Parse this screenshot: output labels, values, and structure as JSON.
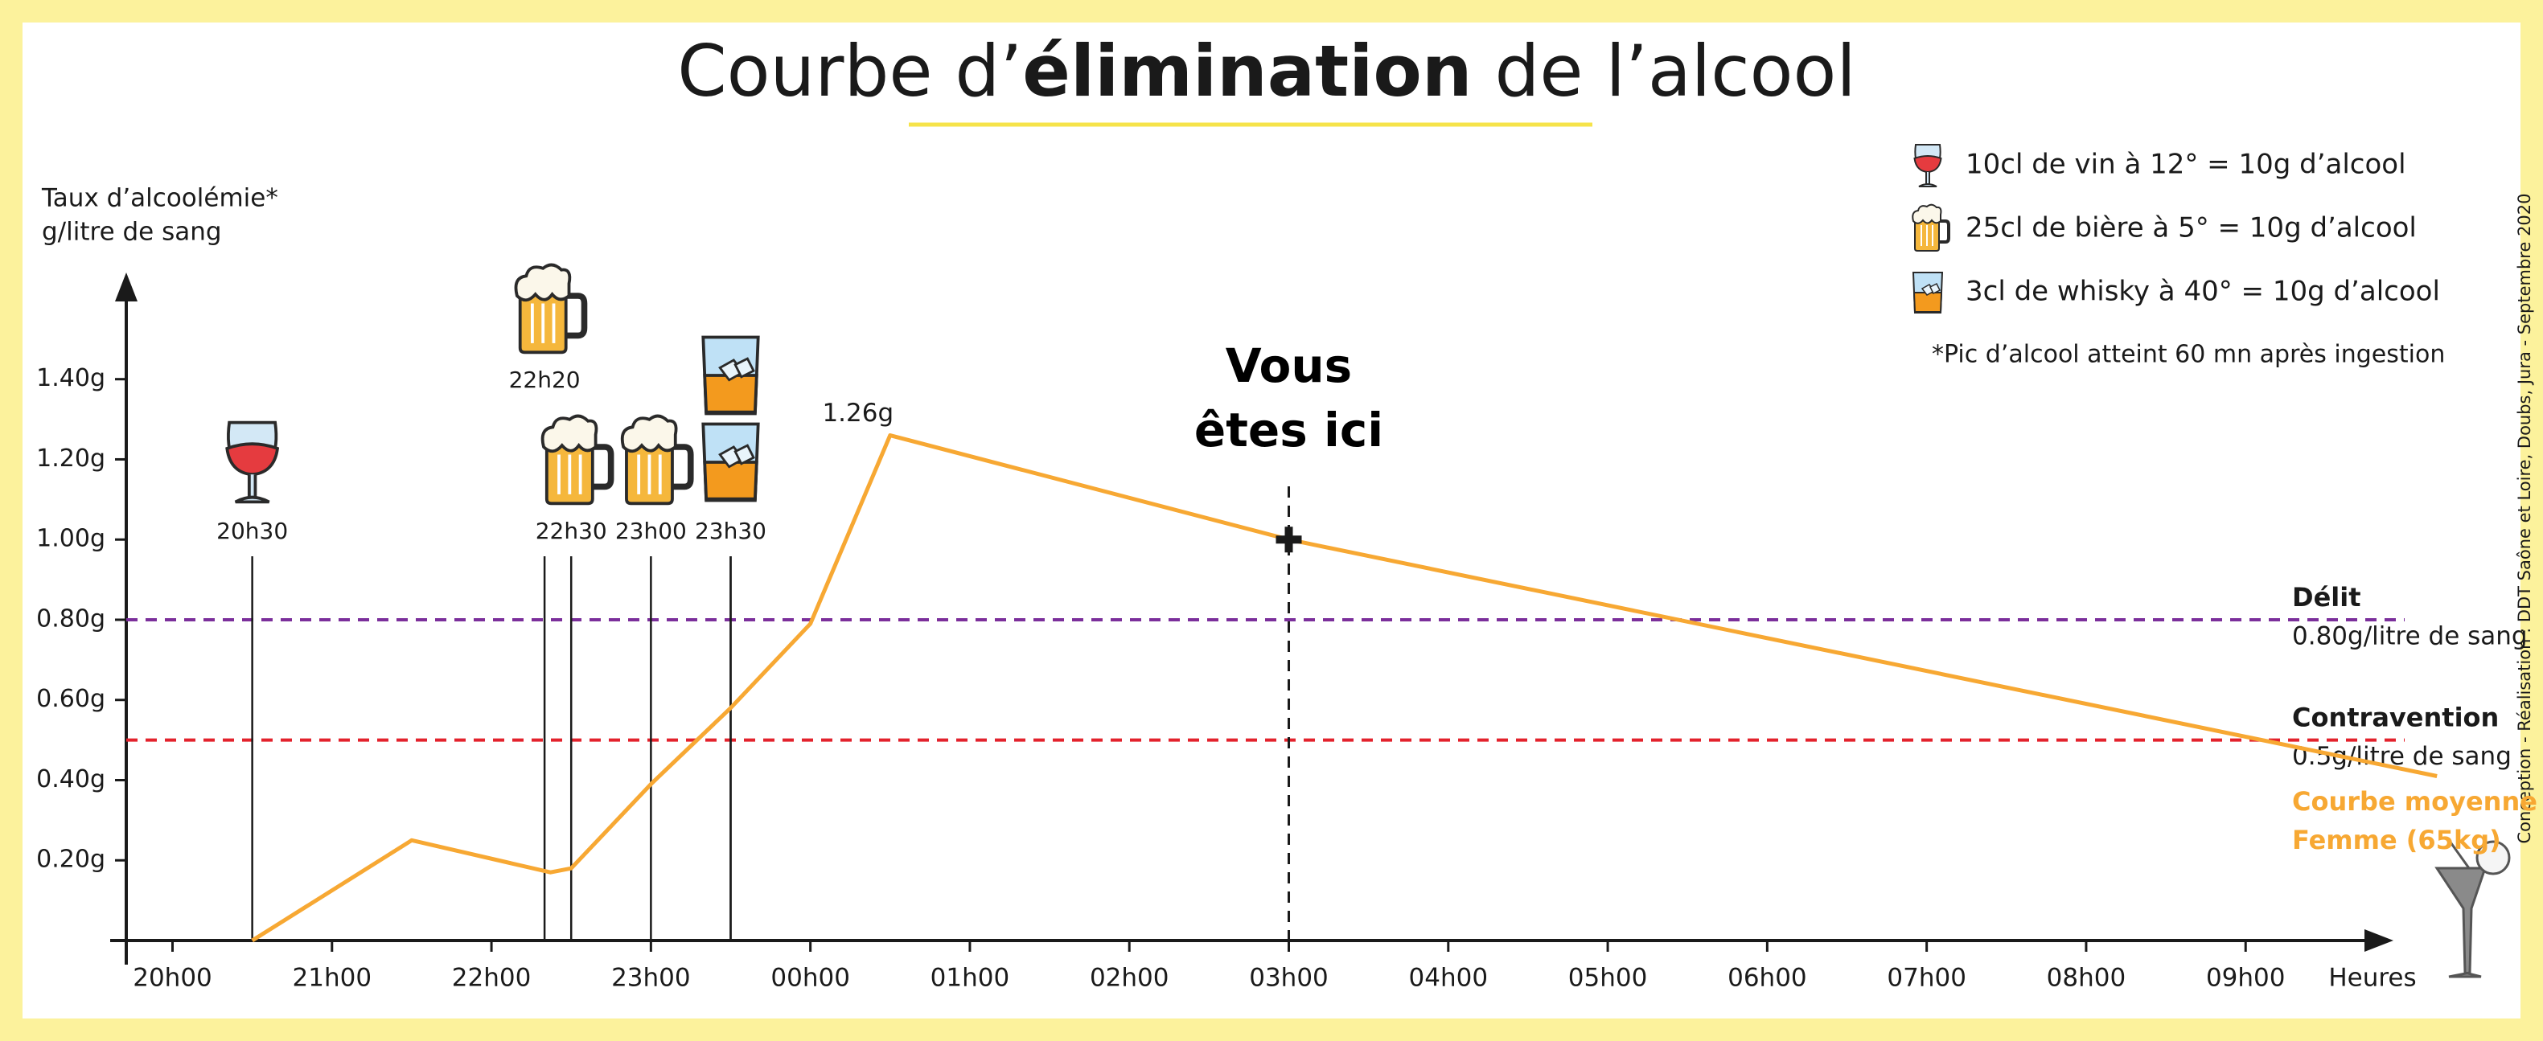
{
  "chart_data": {
    "type": "line",
    "title": [
      "Courbe d’",
      "élimination",
      " de l’alcool"
    ],
    "ylabel": [
      "Taux d’alcoolémie*",
      "g/litre de sang"
    ],
    "xlabel": "Heures",
    "x": [
      20.5,
      21.5,
      22.37,
      22.5,
      23,
      23.5,
      24,
      24.5,
      27,
      34.2
    ],
    "series": [
      {
        "name": "Courbe moyenne Femme (65kg)",
        "color": "#f7a833",
        "values": [
          0,
          0.25,
          0.17,
          0.18,
          0.39,
          0.58,
          0.79,
          1.26,
          1.0,
          0.41
        ],
        "value_labels": [
          null,
          null,
          null,
          null,
          null,
          null,
          null,
          "1.26g",
          null,
          null
        ]
      }
    ],
    "xlim": [
      19.71,
      34.3
    ],
    "xticks": [
      {
        "value": 20,
        "label": "20h00"
      },
      {
        "value": 21,
        "label": "21h00"
      },
      {
        "value": 22,
        "label": "22h00"
      },
      {
        "value": 23,
        "label": "23h00"
      },
      {
        "value": 24,
        "label": "00h00"
      },
      {
        "value": 25,
        "label": "01h00"
      },
      {
        "value": 26,
        "label": "02h00"
      },
      {
        "value": 27,
        "label": "03h00"
      },
      {
        "value": 28,
        "label": "04h00"
      },
      {
        "value": 29,
        "label": "05h00"
      },
      {
        "value": 30,
        "label": "06h00"
      },
      {
        "value": 31,
        "label": "07h00"
      },
      {
        "value": 32,
        "label": "08h00"
      },
      {
        "value": 33,
        "label": "09h00"
      }
    ],
    "ylim": [
      0,
      1.65
    ],
    "yticks": [
      {
        "value": 0.2,
        "label": "0.20g"
      },
      {
        "value": 0.4,
        "label": "0.40g"
      },
      {
        "value": 0.6,
        "label": "0.60g"
      },
      {
        "value": 0.8,
        "label": "0.80g"
      },
      {
        "value": 1.0,
        "label": "1.00g"
      },
      {
        "value": 1.2,
        "label": "1.20g"
      },
      {
        "value": 1.4,
        "label": "1.40g"
      }
    ],
    "thresholds": [
      {
        "value": 0.8,
        "label": "Délit",
        "sublabel": "0.80g/litre de sang",
        "color": "#7b2f9b"
      },
      {
        "value": 0.5,
        "label": "Contravention",
        "sublabel": "0.5g/litre de sang",
        "color": "#e3222c"
      }
    ],
    "drinks": [
      {
        "x": 20.5,
        "label": "20h30",
        "icon": "wine"
      },
      {
        "x": 22.5,
        "label": "22h30",
        "icon": "beer"
      },
      {
        "x": 22.333,
        "label": "22h20",
        "icon": "beer"
      },
      {
        "x": 23,
        "label": "23h00",
        "icon": "beer"
      },
      {
        "x": 23.5,
        "label": "23h30",
        "icon": "whisky"
      },
      {
        "x": 23.5,
        "label": null,
        "icon": "whisky"
      }
    ],
    "marker": {
      "label": "Vous êtes ici",
      "x": 27
    },
    "legend": [
      {
        "icon": "wine",
        "label": "10cl de vin à 12° = 10g d’alcool"
      },
      {
        "icon": "beer",
        "label": "25cl de bière à 5° = 10g d’alcool"
      },
      {
        "icon": "whisky",
        "label": "3cl de whisky à 40° = 10g d’alcool"
      }
    ],
    "note": "*Pic d’alcool atteint 60 mn après ingestion",
    "credit": "Conception - Réalisation : DDT Saône et Loire, Doubs, Jura - Septembre 2020"
  }
}
